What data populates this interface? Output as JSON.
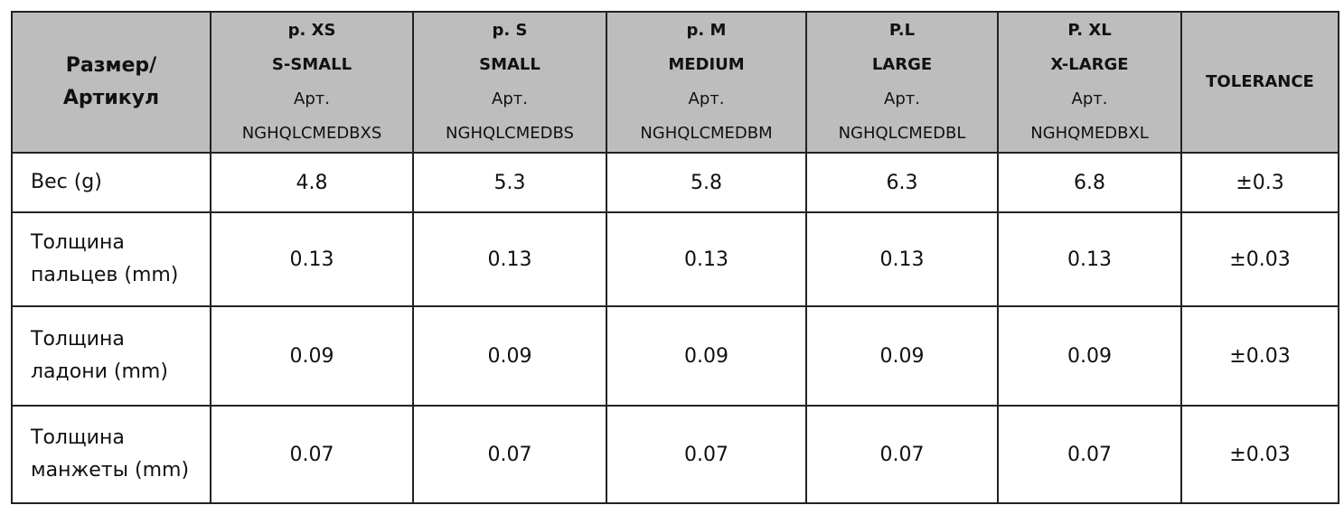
{
  "table": {
    "corner": [
      "Размер/",
      "Артикул"
    ],
    "columns": [
      {
        "size": "p. XS",
        "name": "S-SMALL",
        "art_label": "Арт.",
        "article": "NGHQLCMEDBXS"
      },
      {
        "size": "p. S",
        "name": "SMALL",
        "art_label": "Арт.",
        "article": "NGHQLCMEDBS"
      },
      {
        "size": "p. M",
        "name": "MEDIUM",
        "art_label": "Арт.",
        "article": "NGHQLCMEDBM"
      },
      {
        "size": "P.L",
        "name": "LARGE",
        "art_label": "Арт.",
        "article": "NGHQLCMEDBL"
      },
      {
        "size": "P. XL",
        "name": "X-LARGE",
        "art_label": "Арт.",
        "article": "NGHQMEDBXL"
      }
    ],
    "tolerance_header": "TOLERANCE",
    "rows": [
      {
        "label": [
          "Вес (g)"
        ],
        "cells": [
          "4.8",
          "5.3",
          "5.8",
          "6.3",
          "6.8"
        ],
        "tolerance": "±0.3"
      },
      {
        "label": [
          "Толщина",
          "пальцев (mm)"
        ],
        "cells": [
          "0.13",
          "0.13",
          "0.13",
          "0.13",
          "0.13"
        ],
        "tolerance": "±0.03"
      },
      {
        "label": [
          "Толщина",
          "ладони (mm)"
        ],
        "cells": [
          "0.09",
          "0.09",
          "0.09",
          "0.09",
          "0.09"
        ],
        "tolerance": "±0.03"
      },
      {
        "label": [
          "Толщина",
          "манжеты (mm)"
        ],
        "cells": [
          "0.07",
          "0.07",
          "0.07",
          "0.07",
          "0.07"
        ],
        "tolerance": "±0.03"
      }
    ]
  }
}
